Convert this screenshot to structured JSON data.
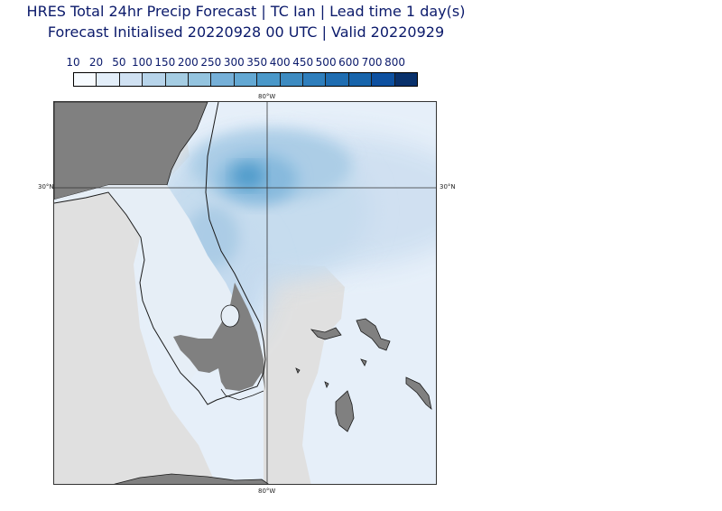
{
  "title": {
    "line1": "HRES Total 24hr Precip Forecast | TC Ian | Lead time 1 day(s)",
    "line2": "Forecast Initialised 20220928 00 UTC | Valid 20220929"
  },
  "colorbar": {
    "levels": [
      "10",
      "20",
      "50",
      "100",
      "150",
      "200",
      "250",
      "300",
      "350",
      "400",
      "450",
      "500",
      "600",
      "700",
      "800"
    ],
    "colors": [
      "#f7fbff",
      "#e3eef9",
      "#d0e1f2",
      "#b7d4ea",
      "#a5cde3",
      "#94c4df",
      "#76b0d8",
      "#63a8d3",
      "#4a98c9",
      "#3d8bc1",
      "#2e7ebc",
      "#1f6db1",
      "#1764ab",
      "#0d50a0",
      "#08306b"
    ]
  },
  "map": {
    "grid": {
      "lon_label": "80°W",
      "lat_label": "30°N"
    },
    "colors": {
      "land_dry": "#808080",
      "land_pale": "#e0e0e0",
      "coastline": "#1a1a1a",
      "grid_line": "#333333"
    }
  }
}
